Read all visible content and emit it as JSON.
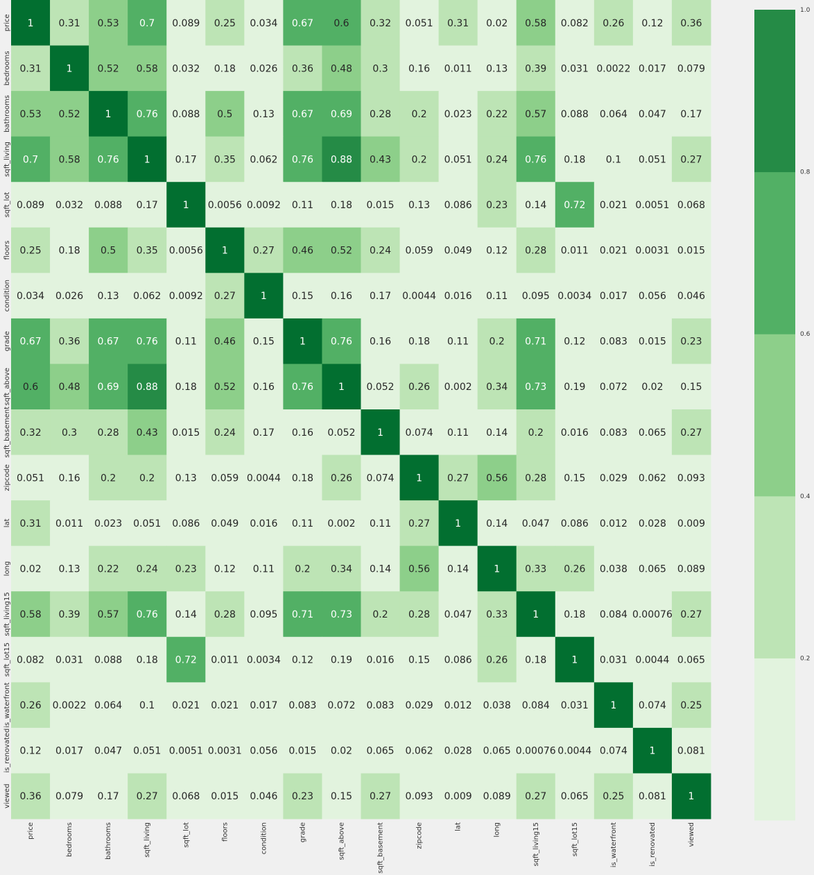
{
  "chart_data": {
    "type": "heatmap",
    "title": "",
    "xlabel": "",
    "ylabel": "",
    "variables": [
      "price",
      "bedrooms",
      "bathrooms",
      "sqft_living",
      "sqft_lot",
      "floors",
      "condition",
      "grade",
      "sqft_above",
      "sqft_basement",
      "zipcode",
      "lat",
      "long",
      "sqft_living15",
      "sqft_lot15",
      "is_waterfront",
      "is_renovated",
      "viewed"
    ],
    "matrix": [
      [
        "1",
        "0.31",
        "0.53",
        "0.7",
        "0.089",
        "0.25",
        "0.034",
        "0.67",
        "0.6",
        "0.32",
        "0.051",
        "0.31",
        "0.02",
        "0.58",
        "0.082",
        "0.26",
        "0.12",
        "0.36"
      ],
      [
        "0.31",
        "1",
        "0.52",
        "0.58",
        "0.032",
        "0.18",
        "0.026",
        "0.36",
        "0.48",
        "0.3",
        "0.16",
        "0.011",
        "0.13",
        "0.39",
        "0.031",
        "0.0022",
        "0.017",
        "0.079"
      ],
      [
        "0.53",
        "0.52",
        "1",
        "0.76",
        "0.088",
        "0.5",
        "0.13",
        "0.67",
        "0.69",
        "0.28",
        "0.2",
        "0.023",
        "0.22",
        "0.57",
        "0.088",
        "0.064",
        "0.047",
        "0.17"
      ],
      [
        "0.7",
        "0.58",
        "0.76",
        "1",
        "0.17",
        "0.35",
        "0.062",
        "0.76",
        "0.88",
        "0.43",
        "0.2",
        "0.051",
        "0.24",
        "0.76",
        "0.18",
        "0.1",
        "0.051",
        "0.27"
      ],
      [
        "0.089",
        "0.032",
        "0.088",
        "0.17",
        "1",
        "0.0056",
        "0.0092",
        "0.11",
        "0.18",
        "0.015",
        "0.13",
        "0.086",
        "0.23",
        "0.14",
        "0.72",
        "0.021",
        "0.0051",
        "0.068"
      ],
      [
        "0.25",
        "0.18",
        "0.5",
        "0.35",
        "0.0056",
        "1",
        "0.27",
        "0.46",
        "0.52",
        "0.24",
        "0.059",
        "0.049",
        "0.12",
        "0.28",
        "0.011",
        "0.021",
        "0.0031",
        "0.015"
      ],
      [
        "0.034",
        "0.026",
        "0.13",
        "0.062",
        "0.0092",
        "0.27",
        "1",
        "0.15",
        "0.16",
        "0.17",
        "0.0044",
        "0.016",
        "0.11",
        "0.095",
        "0.0034",
        "0.017",
        "0.056",
        "0.046"
      ],
      [
        "0.67",
        "0.36",
        "0.67",
        "0.76",
        "0.11",
        "0.46",
        "0.15",
        "1",
        "0.76",
        "0.16",
        "0.18",
        "0.11",
        "0.2",
        "0.71",
        "0.12",
        "0.083",
        "0.015",
        "0.23"
      ],
      [
        "0.6",
        "0.48",
        "0.69",
        "0.88",
        "0.18",
        "0.52",
        "0.16",
        "0.76",
        "1",
        "0.052",
        "0.26",
        "0.002",
        "0.34",
        "0.73",
        "0.19",
        "0.072",
        "0.02",
        "0.15"
      ],
      [
        "0.32",
        "0.3",
        "0.28",
        "0.43",
        "0.015",
        "0.24",
        "0.17",
        "0.16",
        "0.052",
        "1",
        "0.074",
        "0.11",
        "0.14",
        "0.2",
        "0.016",
        "0.083",
        "0.065",
        "0.27"
      ],
      [
        "0.051",
        "0.16",
        "0.2",
        "0.2",
        "0.13",
        "0.059",
        "0.0044",
        "0.18",
        "0.26",
        "0.074",
        "1",
        "0.27",
        "0.56",
        "0.28",
        "0.15",
        "0.029",
        "0.062",
        "0.093"
      ],
      [
        "0.31",
        "0.011",
        "0.023",
        "0.051",
        "0.086",
        "0.049",
        "0.016",
        "0.11",
        "0.002",
        "0.11",
        "0.27",
        "1",
        "0.14",
        "0.047",
        "0.086",
        "0.012",
        "0.028",
        "0.009"
      ],
      [
        "0.02",
        "0.13",
        "0.22",
        "0.24",
        "0.23",
        "0.12",
        "0.11",
        "0.2",
        "0.34",
        "0.14",
        "0.56",
        "0.14",
        "1",
        "0.33",
        "0.26",
        "0.038",
        "0.065",
        "0.089"
      ],
      [
        "0.58",
        "0.39",
        "0.57",
        "0.76",
        "0.14",
        "0.28",
        "0.095",
        "0.71",
        "0.73",
        "0.2",
        "0.28",
        "0.047",
        "0.33",
        "1",
        "0.18",
        "0.084",
        "0.00076",
        "0.27"
      ],
      [
        "0.082",
        "0.031",
        "0.088",
        "0.18",
        "0.72",
        "0.011",
        "0.0034",
        "0.12",
        "0.19",
        "0.016",
        "0.15",
        "0.086",
        "0.26",
        "0.18",
        "1",
        "0.031",
        "0.0044",
        "0.065"
      ],
      [
        "0.26",
        "0.0022",
        "0.064",
        "0.1",
        "0.021",
        "0.021",
        "0.017",
        "0.083",
        "0.072",
        "0.083",
        "0.029",
        "0.012",
        "0.038",
        "0.084",
        "0.031",
        "1",
        "0.074",
        "0.25"
      ],
      [
        "0.12",
        "0.017",
        "0.047",
        "0.051",
        "0.0051",
        "0.0031",
        "0.056",
        "0.015",
        "0.02",
        "0.065",
        "0.062",
        "0.028",
        "0.065",
        "0.00076",
        "0.0044",
        "0.074",
        "1",
        "0.081"
      ],
      [
        "0.36",
        "0.079",
        "0.17",
        "0.27",
        "0.068",
        "0.015",
        "0.046",
        "0.23",
        "0.15",
        "0.27",
        "0.093",
        "0.009",
        "0.089",
        "0.27",
        "0.065",
        "0.25",
        "0.081",
        "1"
      ]
    ],
    "vmin": 0.0,
    "vmax": 1.0,
    "colormap": "Greens",
    "colorbar": {
      "bins": [
        0.0,
        0.2,
        0.4,
        0.6,
        0.8,
        1.0
      ],
      "colors": [
        "#e2f3de",
        "#bde4b5",
        "#8dcf8a",
        "#52b065",
        "#258b46",
        "#026f30"
      ],
      "ticks": [
        "0.2",
        "0.4",
        "0.6",
        "0.8",
        "1.0"
      ]
    },
    "grid": false,
    "annotations": true
  }
}
